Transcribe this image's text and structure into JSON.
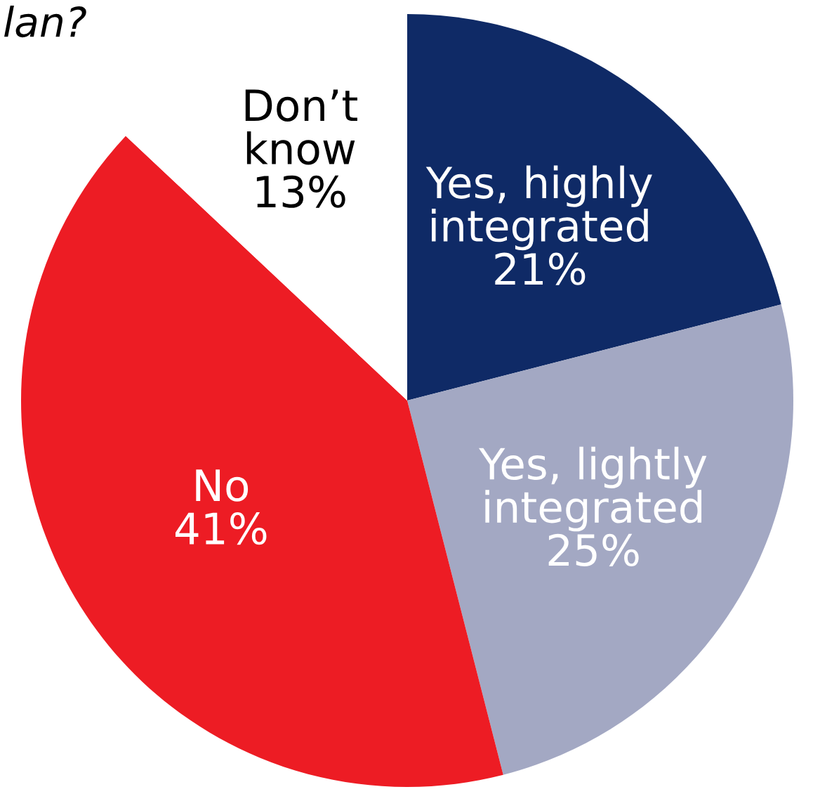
{
  "chart_data": {
    "type": "pie",
    "title": "lan?",
    "categories": [
      "Yes, highly\nintegrated",
      "Yes, lightly\nintegrated",
      "No",
      "Don’t\nknow"
    ],
    "values": [
      21,
      25,
      41,
      13
    ],
    "colors": [
      "#0f2a66",
      "#a3a8c3",
      "#ed1c24",
      "#ffffff"
    ],
    "value_labels": [
      "21%",
      "25%",
      "41%",
      "13%"
    ]
  }
}
